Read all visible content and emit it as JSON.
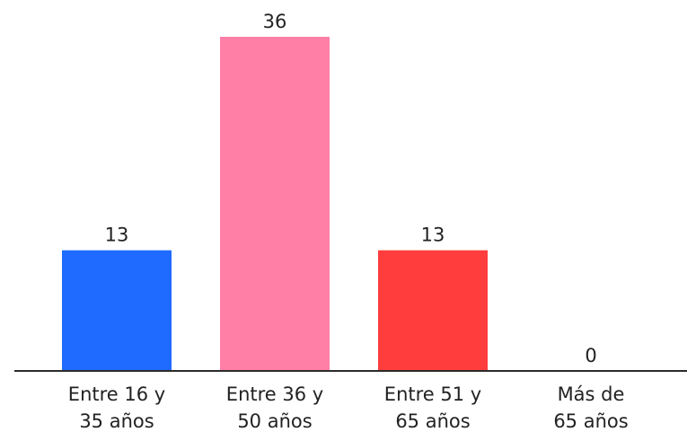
{
  "chart_data": {
    "type": "bar",
    "categories": [
      [
        "Entre 16 y",
        "35 años"
      ],
      [
        "Entre 36 y",
        "50 años"
      ],
      [
        "Entre 51 y",
        "65 años"
      ],
      [
        "Más de",
        "65 años"
      ]
    ],
    "values": [
      13,
      36,
      13,
      0
    ],
    "colors": [
      "#1f6bff",
      "#ff7fa7",
      "#ff3d3d",
      "#cccccc"
    ],
    "title": "",
    "xlabel": "",
    "ylabel": "",
    "ylim": [
      0,
      36
    ],
    "grid": false,
    "legend": "none"
  }
}
